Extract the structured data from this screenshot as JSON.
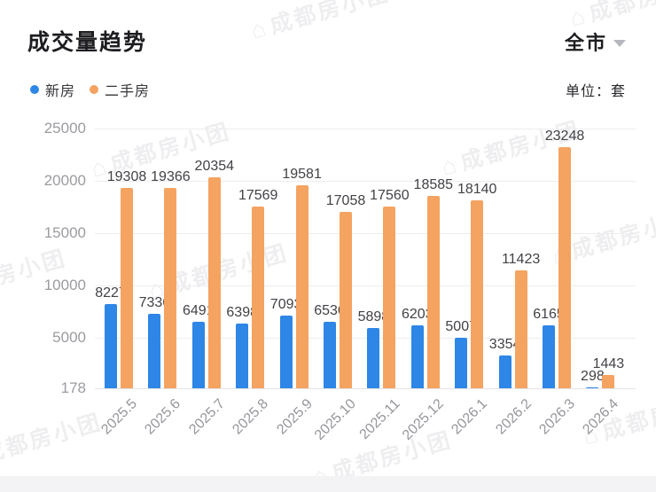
{
  "header": {
    "title": "成交量趋势",
    "region": "全市",
    "unit_label": "单位：套"
  },
  "legend": {
    "items": [
      {
        "label": "新房",
        "color": "#2E86E6"
      },
      {
        "label": "二手房",
        "color": "#F4A361"
      }
    ]
  },
  "watermark": {
    "icon": "⌂",
    "text": "成都房小团"
  },
  "chart_data": {
    "type": "bar",
    "title": "成交量趋势",
    "unit": "套",
    "categories": [
      "2025.5",
      "2025.6",
      "2025.7",
      "2025.8",
      "2025.9",
      "2025.10",
      "2025.11",
      "2025.12",
      "2026.1",
      "2026.2",
      "2026.3",
      "2026.4"
    ],
    "series": [
      {
        "name": "新房",
        "color": "#2E86E6",
        "values": [
          8227,
          7336,
          6491,
          6398,
          7093,
          6536,
          5898,
          6203,
          5007,
          3354,
          6165,
          298
        ]
      },
      {
        "name": "二手房",
        "color": "#F4A361",
        "values": [
          19308,
          19366,
          20354,
          17569,
          19581,
          17058,
          17560,
          18585,
          18140,
          11423,
          23248,
          1443
        ]
      }
    ],
    "y_ticks": [
      25000,
      20000,
      15000,
      10000,
      5000,
      178
    ],
    "ylim": [
      178,
      25000
    ],
    "grid": true,
    "value_labels": true,
    "legend_position": "top-left",
    "x_label_rotation": -45
  }
}
